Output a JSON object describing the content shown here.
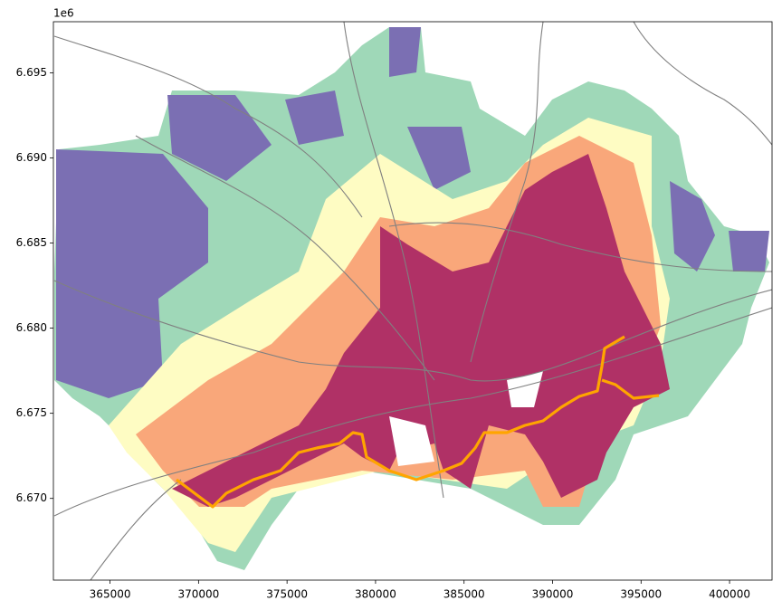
{
  "chart_data": {
    "type": "map",
    "offset_label": "1e6",
    "xlim": [
      361800,
      402400
    ],
    "ylim": [
      6.6652,
      6.698
    ],
    "xticks": [
      365000,
      370000,
      375000,
      380000,
      385000,
      390000,
      395000,
      400000
    ],
    "yticks": [
      {
        "value": 6.67,
        "label": "6.670"
      },
      {
        "value": 6.675,
        "label": "6.675"
      },
      {
        "value": 6.68,
        "label": "6.680"
      },
      {
        "value": 6.685,
        "label": "6.685"
      },
      {
        "value": 6.69,
        "label": "6.690"
      },
      {
        "value": 6.695,
        "label": "6.695"
      }
    ],
    "layer_colors": [
      "#9fd8b8",
      "#7b6fb3",
      "#fefcc3",
      "#f9a77a",
      "#b03166"
    ]
  }
}
